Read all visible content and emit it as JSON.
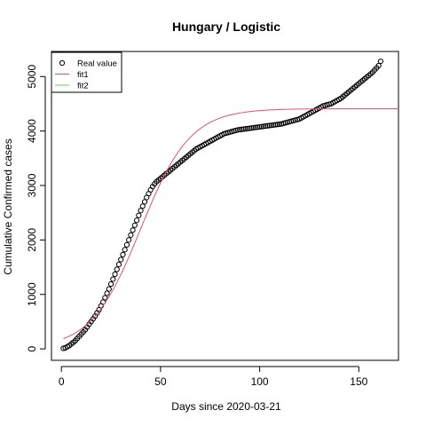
{
  "chart_data": {
    "type": "scatter",
    "title": "Hungary / Logistic",
    "xlabel": "Days since 2020-03-21",
    "ylabel": "Cumulative Confirmed cases",
    "xlim": [
      -5,
      170
    ],
    "ylim": [
      -210,
      5460
    ],
    "xticks": [
      "0",
      "50",
      "100",
      "150"
    ],
    "yticks": [
      "0",
      "1000",
      "2000",
      "3000",
      "4000",
      "5000"
    ],
    "grid": false,
    "legend_position": "top-left",
    "legend": [
      {
        "name": "Real value",
        "kind": "circle",
        "color": "#000000"
      },
      {
        "name": "fit1",
        "kind": "line",
        "color": "#df536b"
      },
      {
        "name": "fit2",
        "kind": "line",
        "color": "#61d04f"
      }
    ],
    "series": [
      {
        "name": "Real value",
        "kind": "points",
        "x_start": 1,
        "x_step": 1,
        "values": [
          10,
          20,
          40,
          60,
          90,
          120,
          150,
          190,
          230,
          270,
          310,
          350,
          400,
          450,
          500,
          550,
          600,
          660,
          720,
          790,
          860,
          940,
          1020,
          1100,
          1190,
          1280,
          1370,
          1460,
          1550,
          1640,
          1730,
          1820,
          1910,
          2000,
          2090,
          2180,
          2270,
          2360,
          2450,
          2540,
          2620,
          2700,
          2780,
          2850,
          2920,
          2980,
          3030,
          3070,
          3100,
          3130,
          3160,
          3190,
          3220,
          3250,
          3280,
          3310,
          3340,
          3370,
          3400,
          3430,
          3460,
          3490,
          3520,
          3550,
          3580,
          3610,
          3640,
          3670,
          3690,
          3710,
          3730,
          3750,
          3770,
          3790,
          3810,
          3830,
          3850,
          3870,
          3890,
          3910,
          3930,
          3950,
          3960,
          3970,
          3980,
          3990,
          4000,
          4010,
          4020,
          4025,
          4030,
          4035,
          4040,
          4045,
          4050,
          4055,
          4060,
          4065,
          4070,
          4075,
          4080,
          4085,
          4090,
          4095,
          4100,
          4105,
          4110,
          4115,
          4120,
          4125,
          4130,
          4140,
          4150,
          4160,
          4170,
          4180,
          4190,
          4200,
          4210,
          4220,
          4240,
          4260,
          4280,
          4300,
          4320,
          4340,
          4360,
          4380,
          4400,
          4420,
          4440,
          4460,
          4470,
          4480,
          4490,
          4500,
          4520,
          4540,
          4560,
          4580,
          4600,
          4630,
          4660,
          4690,
          4720,
          4750,
          4780,
          4810,
          4840,
          4870,
          4900,
          4930,
          4960,
          4990,
          5020,
          5050,
          5080,
          5120,
          5160,
          5200,
          5280
        ],
        "color": "#000000"
      },
      {
        "name": "fit1",
        "kind": "line",
        "model": "logistic",
        "K": 4410,
        "r": 0.08,
        "t0": 40,
        "x_range": [
          1,
          170
        ],
        "color": "#df536b"
      }
    ]
  }
}
